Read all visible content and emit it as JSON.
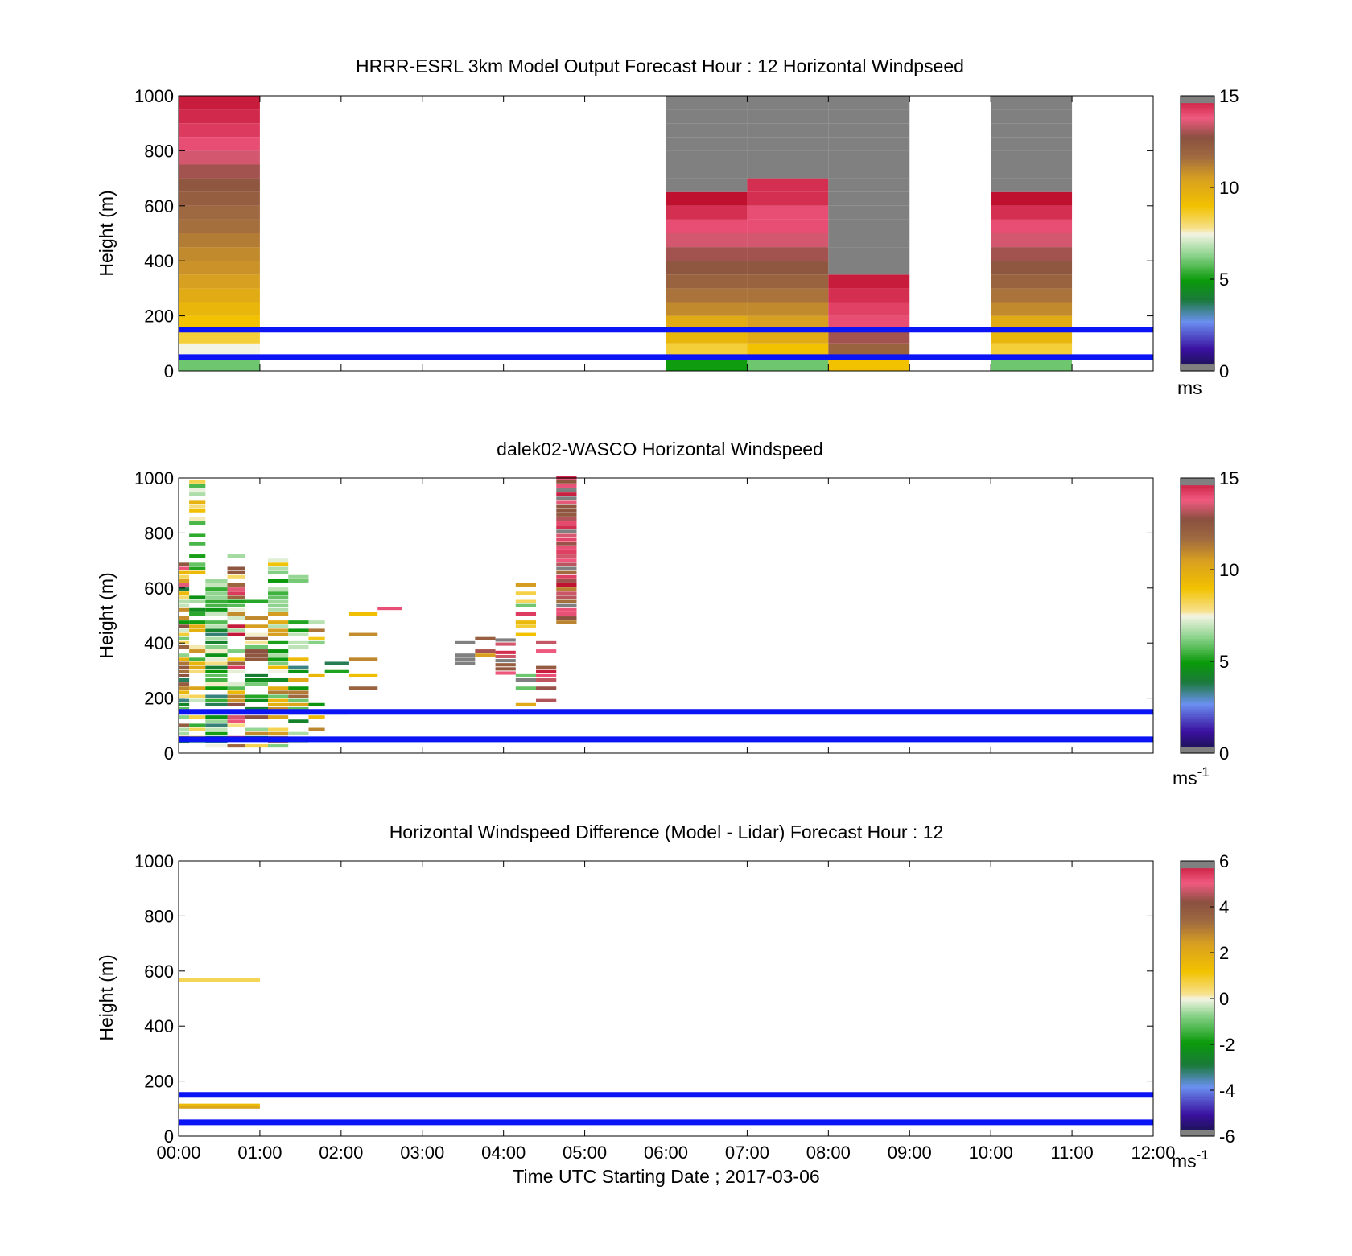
{
  "figure": {
    "xtick_labels": [
      "00:00",
      "01:00",
      "02:00",
      "03:00",
      "04:00",
      "05:00",
      "06:00",
      "07:00",
      "08:00",
      "09:00",
      "10:00",
      "11:00",
      "12:00"
    ],
    "xlabel": "Time UTC  Starting Date ; 2017-03-06",
    "reference_line_color": "#0a14f5"
  },
  "chart_data": [
    {
      "type": "heatmap",
      "title": "HRRR-ESRL 3km Model Output   Forecast Hour : 12 Horizontal Windpseed",
      "ylabel": "Height (m)",
      "yticks": [
        "0",
        "200",
        "400",
        "600",
        "800",
        "1000"
      ],
      "xlim": [
        0,
        12
      ],
      "ylim": [
        0,
        1000
      ],
      "grid": false,
      "colorbar": {
        "min": 0,
        "max": 15,
        "ticks": [
          "0",
          "5",
          "10",
          "15"
        ],
        "unit": "ms",
        "unit_sup": "",
        "palette": "speed"
      },
      "reference_lines_m": [
        50,
        150
      ],
      "bin_height_m": 50,
      "columns": [
        {
          "t0": 0,
          "t1": 1,
          "values": [
            6,
            7.5,
            8.5,
            9,
            9.5,
            10,
            10.5,
            10.8,
            11,
            11.3,
            11.6,
            11.8,
            12.2,
            12.5,
            13,
            13.5,
            14,
            14.3,
            14.6,
            14.8
          ]
        },
        {
          "t0": 6,
          "t1": 7,
          "values": [
            5,
            8.5,
            9.5,
            10,
            11,
            11.5,
            12,
            12.5,
            13,
            13.5,
            14,
            14.5,
            15,
            15.5,
            15.5,
            15.5,
            15.5,
            15.5,
            15.5,
            15.5
          ]
        },
        {
          "t0": 7,
          "t1": 8,
          "values": [
            6,
            9,
            10,
            10.5,
            11,
            11.5,
            12,
            12.5,
            13,
            13.5,
            14,
            14,
            14.5,
            14.5,
            15.5,
            15.5,
            15.5,
            15.5,
            15.5,
            15.5
          ]
        },
        {
          "t0": 8,
          "t1": 9,
          "values": [
            9,
            12,
            13,
            14,
            14.2,
            14.5,
            14.8,
            15.5,
            15.5,
            15.5,
            15.5,
            15.5,
            15.5,
            15.5,
            15.5,
            15.5,
            15.5,
            15.5,
            15.5,
            15.5
          ]
        },
        {
          "t0": 10,
          "t1": 11,
          "values": [
            6,
            8.5,
            9.5,
            10,
            11,
            11.5,
            12,
            12.5,
            13,
            13.5,
            14,
            14.5,
            15,
            15.5,
            15.5,
            15.5,
            15.5,
            15.5,
            15.5,
            15.5
          ]
        }
      ]
    },
    {
      "type": "heatmap",
      "title": "dalek02-WASCO  Horizontal Windspeed",
      "ylabel": "Height (m)",
      "yticks": [
        "0",
        "200",
        "400",
        "600",
        "800",
        "1000"
      ],
      "xlim": [
        0,
        12
      ],
      "ylim": [
        0,
        1000
      ],
      "grid": false,
      "colorbar": {
        "min": 0,
        "max": 15,
        "ticks": [
          "0",
          "5",
          "10",
          "15"
        ],
        "unit": "ms",
        "unit_sup": "-1",
        "palette": "speed"
      },
      "reference_lines_m": [
        50,
        150
      ],
      "bin_height_m": 15,
      "columns": [
        {
          "t0": 0.0,
          "t1": 0.13,
          "seed": 11,
          "from": 20,
          "to": 690,
          "fill": 0.85,
          "vals": [
            3,
            14
          ]
        },
        {
          "t0": 0.13,
          "t1": 0.33,
          "seed": 12,
          "from": 20,
          "to": 990,
          "fill": 0.6,
          "vals": [
            4,
            11
          ]
        },
        {
          "t0": 0.33,
          "t1": 0.6,
          "seed": 13,
          "from": 20,
          "to": 650,
          "fill": 0.9,
          "vals": [
            3,
            8
          ]
        },
        {
          "t0": 0.6,
          "t1": 0.82,
          "seed": 14,
          "from": 20,
          "to": 720,
          "fill": 0.7,
          "vals": [
            5,
            15
          ]
        },
        {
          "t0": 0.82,
          "t1": 1.1,
          "seed": 15,
          "from": 20,
          "to": 560,
          "fill": 0.65,
          "vals": [
            4,
            13
          ]
        },
        {
          "t0": 1.1,
          "t1": 1.35,
          "seed": 16,
          "from": 20,
          "to": 710,
          "fill": 0.75,
          "vals": [
            4,
            12
          ]
        },
        {
          "t0": 1.35,
          "t1": 1.6,
          "seed": 17,
          "from": 20,
          "to": 680,
          "fill": 0.5,
          "vals": [
            3,
            13
          ]
        },
        {
          "t0": 1.6,
          "t1": 1.8,
          "seed": 18,
          "from": 20,
          "to": 560,
          "fill": 0.35,
          "vals": [
            3,
            12
          ]
        },
        {
          "t0": 1.8,
          "t1": 2.1,
          "seed": 19,
          "from": 20,
          "to": 380,
          "fill": 0.2,
          "vals": [
            3,
            12
          ]
        },
        {
          "t0": 2.1,
          "t1": 2.45,
          "seed": 20,
          "from": 200,
          "to": 520,
          "fill": 0.15,
          "vals": [
            9,
            13
          ]
        },
        {
          "t0": 2.45,
          "t1": 2.75,
          "seed": 21,
          "from": 280,
          "to": 660,
          "fill": 0.15,
          "vals": [
            6,
            14
          ]
        },
        {
          "t0": 3.4,
          "t1": 3.65,
          "seed": 22,
          "from": 320,
          "to": 410,
          "fill": 0.5,
          "vals": [
            15.5,
            15.5
          ]
        },
        {
          "t0": 3.65,
          "t1": 3.9,
          "seed": 23,
          "from": 230,
          "to": 430,
          "fill": 0.3,
          "vals": [
            3,
            15
          ]
        },
        {
          "t0": 3.9,
          "t1": 4.15,
          "seed": 24,
          "from": 210,
          "to": 430,
          "fill": 0.45,
          "vals": [
            12,
            15.5
          ]
        },
        {
          "t0": 4.15,
          "t1": 4.4,
          "seed": 25,
          "from": 140,
          "to": 670,
          "fill": 0.3,
          "vals": [
            5,
            15.5
          ]
        },
        {
          "t0": 4.4,
          "t1": 4.65,
          "seed": 26,
          "from": 170,
          "to": 430,
          "fill": 0.4,
          "vals": [
            12,
            15.5
          ]
        },
        {
          "t0": 4.65,
          "t1": 4.9,
          "seed": 27,
          "from": 470,
          "to": 1000,
          "fill": 0.95,
          "vals": [
            11,
            15.5
          ]
        }
      ]
    },
    {
      "type": "heatmap",
      "title": "Horizontal Windspeed Difference (Model - Lidar) Forecast Hour : 12",
      "ylabel": "Height (m)",
      "yticks": [
        "0",
        "200",
        "400",
        "600",
        "800",
        "1000"
      ],
      "xlim": [
        0,
        12
      ],
      "ylim": [
        0,
        1000
      ],
      "grid": false,
      "colorbar": {
        "min": -6,
        "max": 6,
        "ticks": [
          "-6",
          "-4",
          "-2",
          "0",
          "2",
          "4",
          "6"
        ],
        "unit": "ms",
        "unit_sup": "-1",
        "palette": "diff"
      },
      "reference_lines_m": [
        50,
        150
      ],
      "cells": [
        {
          "t0": 0,
          "t1": 1,
          "h0": 560,
          "h1": 575,
          "value": 0.6
        },
        {
          "t0": 0,
          "t1": 1,
          "h0": 100,
          "h1": 110,
          "value": 2.2
        },
        {
          "t0": 0,
          "t1": 1,
          "h0": 110,
          "h1": 118,
          "value": 1.5
        }
      ]
    }
  ]
}
